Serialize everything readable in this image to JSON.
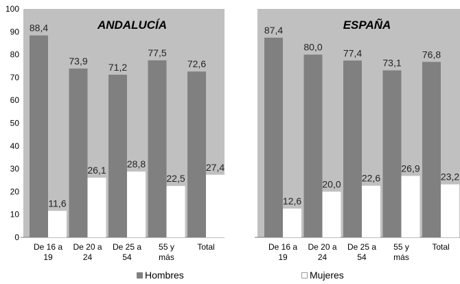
{
  "chart_data": [
    {
      "type": "bar",
      "title": "ANDALUCÍA",
      "categories": [
        [
          "De 16 a",
          "19"
        ],
        [
          "De 20 a",
          "24"
        ],
        [
          "De 25 a",
          "54"
        ],
        [
          "55 y",
          "más"
        ],
        [
          "Total"
        ]
      ],
      "series": [
        {
          "name": "Hombres",
          "values": [
            88.4,
            73.9,
            71.2,
            77.5,
            72.6
          ]
        },
        {
          "name": "Mujeres",
          "values": [
            11.6,
            26.1,
            28.8,
            22.5,
            27.4
          ]
        }
      ],
      "ylim": [
        0,
        100
      ],
      "yticks": [
        0,
        10,
        20,
        30,
        40,
        50,
        60,
        70,
        80,
        90,
        100
      ]
    },
    {
      "type": "bar",
      "title": "ESPAÑA",
      "categories": [
        [
          "De 16 a",
          "19"
        ],
        [
          "De 20 a",
          "24"
        ],
        [
          "De 25 a",
          "54"
        ],
        [
          "55 y",
          "más"
        ],
        [
          "Total"
        ]
      ],
      "series": [
        {
          "name": "Hombres",
          "values": [
            87.4,
            80.0,
            77.4,
            73.1,
            76.8
          ]
        },
        {
          "name": "Mujeres",
          "values": [
            12.6,
            20.0,
            22.6,
            26.9,
            23.2
          ]
        }
      ],
      "ylim": [
        0,
        100
      ]
    }
  ],
  "legend": {
    "hombres": "Hombres",
    "mujeres": "Mujeres"
  },
  "colors": {
    "plot_bg": "#c0c0c0",
    "hombres": "#808080",
    "mujeres": "#ffffff"
  },
  "decimal_separator": ","
}
